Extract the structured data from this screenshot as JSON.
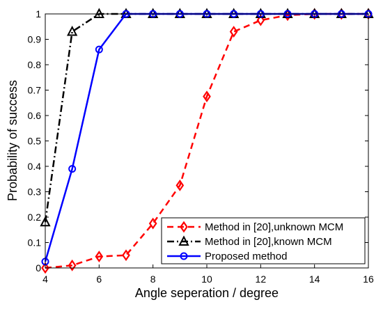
{
  "chart_data": {
    "type": "line",
    "title": "",
    "xlabel": "Angle seperation / degree",
    "ylabel": "Probability of success",
    "xlim": [
      4,
      16
    ],
    "ylim": [
      0,
      1
    ],
    "xticks": [
      "4",
      "6",
      "8",
      "10",
      "12",
      "14",
      "16"
    ],
    "yticks": [
      "0",
      "0.1",
      "0.2",
      "0.3",
      "0.4",
      "0.5",
      "0.6",
      "0.7",
      "0.8",
      "0.9",
      "1"
    ],
    "grid": false,
    "legend_position": "bottom-right",
    "x": [
      4,
      5,
      6,
      7,
      8,
      9,
      10,
      11,
      12,
      13,
      14,
      15,
      16
    ],
    "series": [
      {
        "name": "Method in [20],unknown MCM",
        "color": "#ff0000",
        "line_style": "dashed",
        "marker": "diamond",
        "values": [
          0.0,
          0.01,
          0.045,
          0.05,
          0.175,
          0.325,
          0.675,
          0.93,
          0.975,
          0.995,
          1.0,
          1.0,
          1.0
        ]
      },
      {
        "name": "Method in [20],known MCM",
        "color": "#000000",
        "line_style": "dash-dot",
        "marker": "triangle",
        "values": [
          0.18,
          0.93,
          1.0,
          1.0,
          1.0,
          1.0,
          1.0,
          1.0,
          1.0,
          1.0,
          1.0,
          1.0,
          1.0
        ]
      },
      {
        "name": "Proposed method",
        "color": "#0000ff",
        "line_style": "solid",
        "marker": "circle",
        "values": [
          0.025,
          0.39,
          0.86,
          1.0,
          1.0,
          1.0,
          1.0,
          1.0,
          1.0,
          1.0,
          1.0,
          1.0,
          1.0
        ]
      }
    ]
  }
}
